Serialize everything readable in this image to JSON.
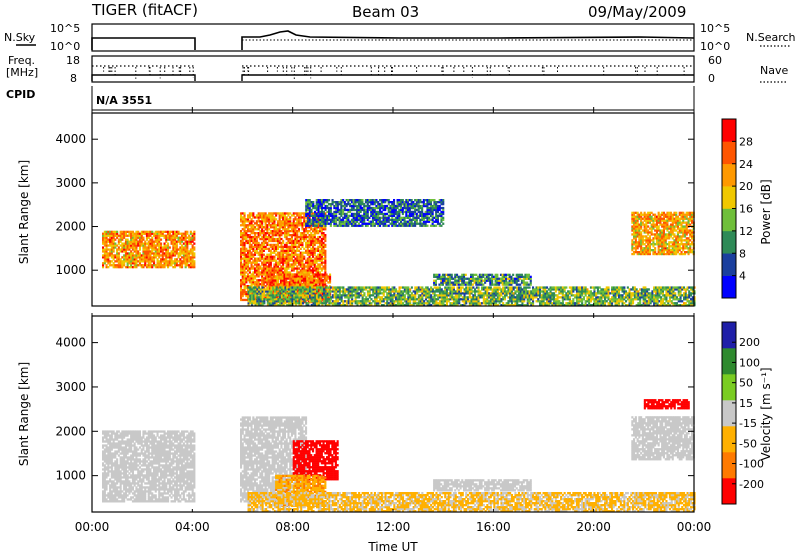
{
  "header": {
    "radar": "TIGER (fitACF)",
    "beam": "Beam 03",
    "date": "09/May/2009"
  },
  "status_panels": {
    "nsky_label": "N.Sky",
    "nsearch_label": "N.Search",
    "nsky_ticks": [
      "10^5",
      "10^0"
    ],
    "nsearch_ticks": [
      "10^5",
      "10^0"
    ],
    "freq_label_1": "Freq.",
    "freq_label_2": "[MHz]",
    "freq_ticks": [
      "18",
      "8"
    ],
    "nave_label": "Nave",
    "nave_ticks": [
      "60",
      "0"
    ],
    "cpid_label": "CPID",
    "cpid_value": "N/A 3551"
  },
  "colors": {
    "power": [
      "#0000ff",
      "#1a3f9e",
      "#2e8a57",
      "#6fbf3a",
      "#f0c800",
      "#ff9900",
      "#ff5500",
      "#ff0000"
    ],
    "velocity": [
      "#ff0000",
      "#ff7a00",
      "#ffb000",
      "#c8c8c8",
      "#7acc22",
      "#2f8a2f",
      "#1f1fa8"
    ],
    "gray": "#c0c0c0"
  },
  "chart_data": [
    {
      "type": "heatmap",
      "name": "power",
      "ylabel": "Slant Range [km]",
      "yticks": [
        "1000",
        "2000",
        "3000",
        "4000"
      ],
      "ylim": [
        180,
        4600
      ],
      "xlim": [
        0,
        24
      ],
      "colorbar_label": "Power [dB]",
      "colorbar_ticks": [
        "4",
        "8",
        "12",
        "16",
        "20",
        "24",
        "28"
      ],
      "colorbar_range": [
        0,
        32
      ],
      "data_gaps_hours": [
        [
          4.1,
          5.9
        ]
      ],
      "regions": [
        {
          "t": [
            0.4,
            4.1
          ],
          "r": [
            1050,
            1900
          ],
          "level": 0.72
        },
        {
          "t": [
            5.9,
            9.3
          ],
          "r": [
            300,
            2300
          ],
          "level": 0.78
        },
        {
          "t": [
            7.0,
            9.5
          ],
          "r": [
            250,
            900
          ],
          "level": 0.85
        },
        {
          "t": [
            6.2,
            24.0
          ],
          "r": [
            180,
            600
          ],
          "level": 0.4
        },
        {
          "t": [
            13.6,
            17.5
          ],
          "r": [
            650,
            900
          ],
          "level": 0.3
        },
        {
          "t": [
            21.5,
            24.0
          ],
          "r": [
            1350,
            2300
          ],
          "level": 0.68
        },
        {
          "t": [
            8.5,
            14.0
          ],
          "r": [
            2000,
            2600
          ],
          "level": 0.2
        }
      ]
    },
    {
      "type": "heatmap",
      "name": "velocity",
      "ylabel": "Slant Range [km]",
      "yticks": [
        "1000",
        "2000",
        "3000",
        "4000"
      ],
      "ylim": [
        180,
        4600
      ],
      "xlim": [
        0,
        24
      ],
      "colorbar_label": "Velocity [m s⁻¹]",
      "colorbar_ticks": [
        "200",
        "100",
        "50",
        "15",
        "-15",
        "-50",
        "-100",
        "-200"
      ],
      "colorbar_range": [
        -250,
        250
      ],
      "xlabel": "Time UT",
      "xticks": [
        "00:00",
        "04:00",
        "08:00",
        "12:00",
        "16:00",
        "20:00",
        "00:00"
      ],
      "data_gaps_hours": [
        [
          4.1,
          5.9
        ]
      ],
      "regions": [
        {
          "t": [
            0.4,
            4.1
          ],
          "r": [
            400,
            2000
          ],
          "level": 0.0
        },
        {
          "t": [
            5.9,
            8.5
          ],
          "r": [
            400,
            2300
          ],
          "level": 0.0
        },
        {
          "t": [
            8.0,
            9.8
          ],
          "r": [
            900,
            1800
          ],
          "level": -180
        },
        {
          "t": [
            7.3,
            9.3
          ],
          "r": [
            300,
            1000
          ],
          "level": -60
        },
        {
          "t": [
            6.2,
            24.0
          ],
          "r": [
            180,
            600
          ],
          "level": -40
        },
        {
          "t": [
            13.6,
            17.5
          ],
          "r": [
            650,
            900
          ],
          "level": 0.0
        },
        {
          "t": [
            21.5,
            24.0
          ],
          "r": [
            1350,
            2300
          ],
          "level": 0.0
        },
        {
          "t": [
            22.0,
            23.8
          ],
          "r": [
            2500,
            2700
          ],
          "level": -200
        }
      ]
    }
  ]
}
